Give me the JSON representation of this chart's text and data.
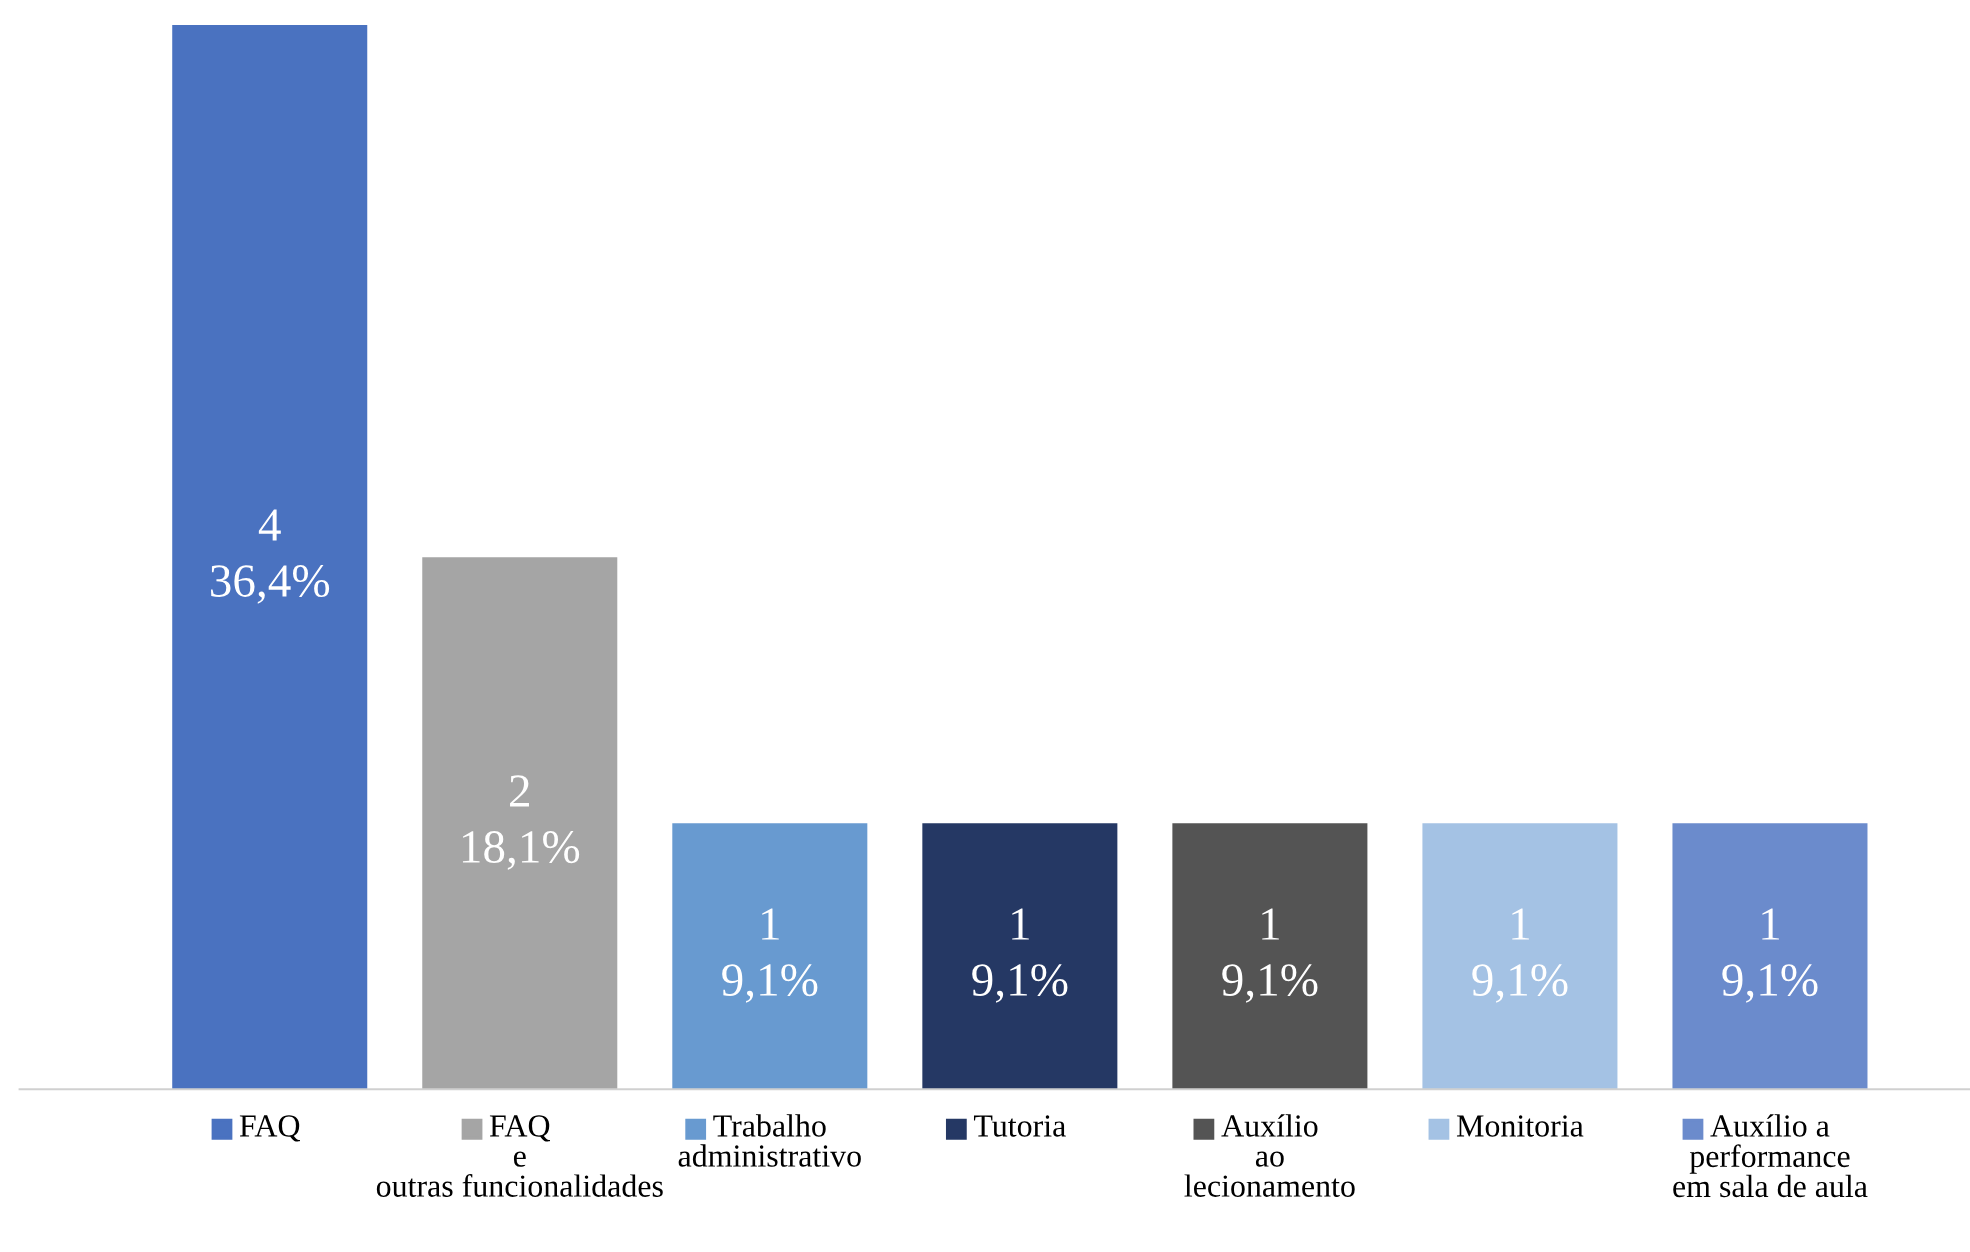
{
  "chart_data": {
    "type": "bar",
    "categories": [
      "FAQ",
      "FAQ\ne\noutras funcionalidades",
      "Trabalho\nadministrativo",
      "Tutoria",
      "Auxílio\nao\nlecionamento",
      "Monitoria",
      "Auxílio a\nperformance\nem sala de aula"
    ],
    "values": [
      4,
      2,
      1,
      1,
      1,
      1,
      1
    ],
    "colors": [
      "#4a72c0",
      "#a5a5a5",
      "#689ad0",
      "#253864",
      "#545454",
      "#a4c2e4",
      "#6b8bcc"
    ],
    "value_labels": [
      "4\n36,4%",
      "2\n18,1%",
      "1\n9,1%",
      "1\n9,1%",
      "1\n9,1%",
      "1\n9,1%",
      "1\n9,1%"
    ],
    "grid": false
  }
}
